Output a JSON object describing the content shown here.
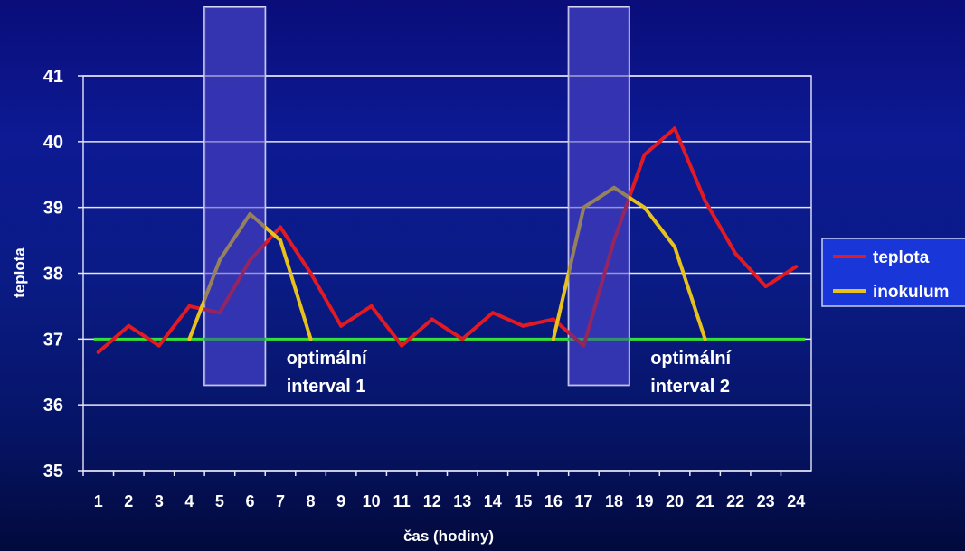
{
  "chart_data": {
    "type": "line",
    "xlabel": "čas (hodiny)",
    "ylabel": "teplota",
    "ylim": [
      35,
      41
    ],
    "yticks": [
      "35",
      "36",
      "37",
      "38",
      "39",
      "40",
      "41"
    ],
    "categories": [
      "1",
      "2",
      "3",
      "4",
      "5",
      "6",
      "7",
      "8",
      "9",
      "10",
      "11",
      "12",
      "13",
      "14",
      "15",
      "16",
      "17",
      "18",
      "19",
      "20",
      "21",
      "22",
      "23",
      "24"
    ],
    "series": [
      {
        "name": "teplota",
        "color": "#e21a22",
        "values": [
          36.8,
          37.2,
          36.9,
          37.5,
          37.4,
          38.2,
          38.7,
          38.0,
          37.2,
          37.5,
          36.9,
          37.3,
          37.0,
          37.4,
          37.2,
          37.3,
          36.9,
          38.5,
          39.8,
          40.2,
          39.1,
          38.3,
          37.8,
          38.1
        ]
      },
      {
        "name": "inokulum",
        "color": "#e8c21c",
        "values": [
          null,
          null,
          null,
          37.0,
          38.2,
          38.9,
          38.5,
          37.0,
          null,
          null,
          null,
          null,
          null,
          null,
          null,
          37.0,
          39.0,
          39.3,
          39.0,
          38.4,
          37.0,
          null,
          null,
          null
        ]
      }
    ],
    "reference_line": {
      "value": 37.0,
      "color": "#33e03a"
    },
    "intervals": [
      {
        "from": 4.5,
        "to": 6.5,
        "label_line1": "optimální",
        "label_line2": "interval 1"
      },
      {
        "from": 16.5,
        "to": 18.5,
        "label_line1": "optimální",
        "label_line2": "interval 2"
      }
    ],
    "grid": true,
    "legend_position": "right"
  }
}
